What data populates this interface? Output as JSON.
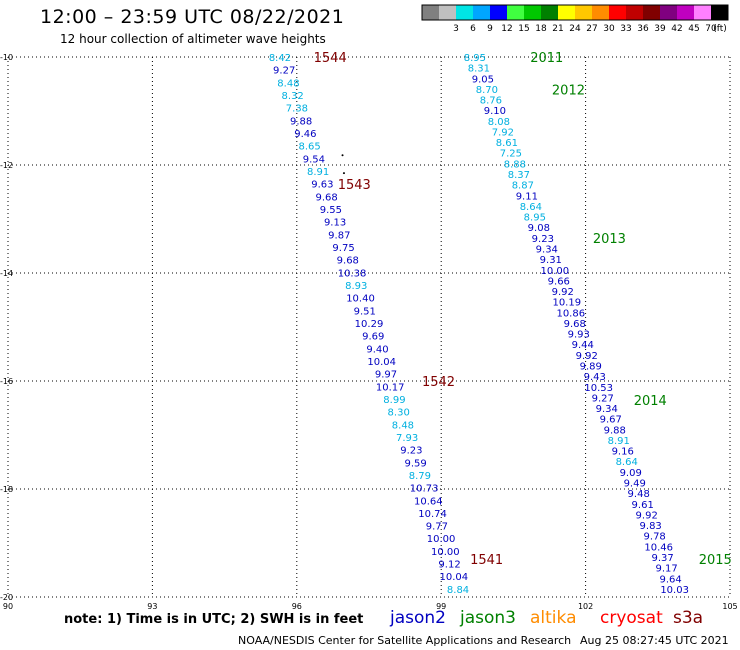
{
  "header": {
    "title": "12:00 – 23:59 UTC 08/22/2021",
    "subtitle": "12 hour collection of altimeter wave heights"
  },
  "legend": {
    "unit_label": "(ft)",
    "bins": [
      {
        "label": "",
        "color": "#808080"
      },
      {
        "label": "3",
        "color": "#c0c0c0"
      },
      {
        "label": "6",
        "color": "#00e5e5"
      },
      {
        "label": "9",
        "color": "#00a6ff"
      },
      {
        "label": "12",
        "color": "#0000ff"
      },
      {
        "label": "15",
        "color": "#40ff40"
      },
      {
        "label": "18",
        "color": "#00c800"
      },
      {
        "label": "21",
        "color": "#008000"
      },
      {
        "label": "24",
        "color": "#ffff00"
      },
      {
        "label": "27",
        "color": "#ffc800"
      },
      {
        "label": "30",
        "color": "#ff8c00"
      },
      {
        "label": "33",
        "color": "#ff0000"
      },
      {
        "label": "36",
        "color": "#c00000"
      },
      {
        "label": "39",
        "color": "#800000"
      },
      {
        "label": "42",
        "color": "#800080"
      },
      {
        "label": "45",
        "color": "#c000c0"
      },
      {
        "label": "70",
        "color": "#ff80ff"
      },
      {
        "label": "",
        "color": "#000000"
      }
    ]
  },
  "map": {
    "lon_range": [
      90,
      105
    ],
    "lat_range": [
      -20,
      -10
    ],
    "lon_ticks": [
      90,
      93,
      96,
      99,
      102,
      105
    ],
    "lon_tick_labels": [
      "90",
      "93",
      "96",
      "99",
      "102",
      "105"
    ],
    "lat_ticks": [
      -10,
      -12,
      -14,
      -16,
      -18,
      -20
    ],
    "lat_tick_labels": [
      "-10",
      "-12",
      "-14",
      "-16",
      "-18",
      "-20"
    ],
    "colors": {
      "jason2": "#0000c0",
      "light": "#00b0e0",
      "jason3": "#008000",
      "altika": "#ff8c00",
      "cryosat": "#ff0000",
      "s3a": "#800000"
    },
    "track_a": {
      "lon_start": 95.65,
      "lon_end": 99.35,
      "lat_start": -10.0,
      "lat_end": -19.85,
      "heights": [
        "8.42",
        "9.27",
        "8.48",
        "8.32",
        "7.38",
        "9.88",
        "9.46",
        "8.65",
        "9.54",
        "8.91",
        "9.63",
        "9.68",
        "9.55",
        "9.13",
        "9.87",
        "9.75",
        "9.68",
        "10.38",
        "8.93",
        "10.40",
        "9.51",
        "10.29",
        "9.69",
        "9.40",
        "10.04",
        "9.97",
        "10.17",
        "8.99",
        "8.30",
        "8.48",
        "7.93",
        "9.23",
        "9.59",
        "8.79",
        "10.73",
        "10.64",
        "10.74",
        "9.77",
        "10.00",
        "10.00",
        "9.12",
        "10.04",
        "8.84"
      ],
      "tones": [
        "light",
        "jason2",
        "light",
        "light",
        "light",
        "jason2",
        "jason2",
        "light",
        "jason2",
        "light",
        "jason2",
        "jason2",
        "jason2",
        "jason2",
        "jason2",
        "jason2",
        "jason2",
        "jason2",
        "light",
        "jason2",
        "jason2",
        "jason2",
        "jason2",
        "jason2",
        "jason2",
        "jason2",
        "jason2",
        "light",
        "light",
        "light",
        "light",
        "jason2",
        "jason2",
        "light",
        "jason2",
        "jason2",
        "jason2",
        "jason2",
        "jason2",
        "jason2",
        "jason2",
        "jason2",
        "light"
      ],
      "passes": [
        {
          "label": "1544",
          "lon": 96.35,
          "lat": -10.0
        },
        {
          "label": "1543",
          "lon": 96.85,
          "lat": -12.35
        },
        {
          "label": "1542",
          "lon": 98.6,
          "lat": -16.0
        },
        {
          "label": "1541",
          "lon": 99.6,
          "lat": -19.3
        }
      ]
    },
    "track_b": {
      "lon_start": 99.7,
      "lon_end": 103.85,
      "lat_start": -10.0,
      "lat_end": -19.85,
      "heights": [
        "8.95",
        "8.31",
        "9.05",
        "8.70",
        "8.76",
        "9.10",
        "8.08",
        "7.92",
        "8.61",
        "7.25",
        "8.88",
        "8.37",
        "8.87",
        "9.11",
        "8.64",
        "8.95",
        "9.08",
        "9.23",
        "9.34",
        "9.31",
        "10.00",
        "9.66",
        "9.92",
        "10.19",
        "10.86",
        "9.68",
        "9.93",
        "9.44",
        "9.92",
        "9.89",
        "9.43",
        "10.53",
        "9.27",
        "9.34",
        "9.67",
        "9.88",
        "8.91",
        "9.16",
        "8.64",
        "9.09",
        "9.49",
        "9.48",
        "9.61",
        "9.92",
        "9.83",
        "9.78",
        "10.46",
        "9.37",
        "9.17",
        "9.64",
        "10.03"
      ],
      "tones": [
        "light",
        "light",
        "jason2",
        "light",
        "light",
        "jason2",
        "light",
        "light",
        "light",
        "light",
        "light",
        "light",
        "light",
        "jason2",
        "light",
        "light",
        "jason2",
        "jason2",
        "jason2",
        "jason2",
        "jason2",
        "jason2",
        "jason2",
        "jason2",
        "jason2",
        "jason2",
        "jason2",
        "jason2",
        "jason2",
        "jason2",
        "jason2",
        "jason2",
        "jason2",
        "jason2",
        "jason2",
        "jason2",
        "light",
        "jason2",
        "light",
        "jason2",
        "jason2",
        "jason2",
        "jason2",
        "jason2",
        "jason2",
        "jason2",
        "jason2",
        "jason2",
        "jason2",
        "jason2",
        "jason2"
      ],
      "passes": [
        {
          "label": "2011",
          "lon": 100.85,
          "lat": -10.0
        },
        {
          "label": "2012",
          "lon": 101.3,
          "lat": -10.6
        },
        {
          "label": "2013",
          "lon": 102.15,
          "lat": -13.35
        },
        {
          "label": "2014",
          "lon": 103.0,
          "lat": -16.35
        },
        {
          "label": "2015",
          "lon": 104.35,
          "lat": -19.3
        }
      ]
    }
  },
  "footer": {
    "note": "note: 1) Time is in UTC; 2) SWH is in feet",
    "satellites": {
      "jason2": "jason2",
      "jason3": "jason3",
      "altika": "altika",
      "cryosat": "cryosat",
      "s3a": "s3a"
    },
    "credit": "NOAA/NESDIS Center for Satellite Applications and Research",
    "timestamp": "Aug 25 08:27:45 UTC 2021"
  }
}
